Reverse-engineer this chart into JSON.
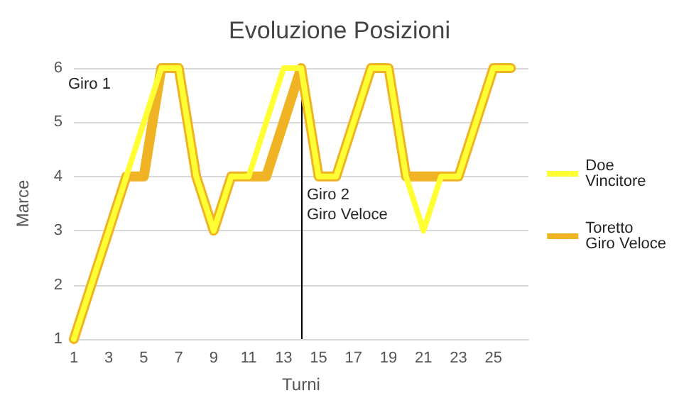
{
  "chart_data": {
    "type": "line",
    "title": "Evoluzione Posizioni",
    "xlabel": "Turni",
    "ylabel": "Marce",
    "x": [
      1,
      2,
      3,
      4,
      5,
      6,
      7,
      8,
      9,
      10,
      11,
      12,
      13,
      14,
      15,
      16,
      17,
      18,
      19,
      20,
      21,
      22,
      23,
      24,
      25,
      26
    ],
    "xlim": [
      1,
      27
    ],
    "xticks": [
      1,
      3,
      5,
      7,
      9,
      11,
      13,
      15,
      17,
      19,
      21,
      23,
      25
    ],
    "ylim": [
      1,
      6
    ],
    "yticks": [
      1,
      2,
      3,
      4,
      5,
      6
    ],
    "series": [
      {
        "name": "Doe\nVincitore",
        "color": "#ffff33",
        "values": [
          1,
          2,
          3,
          4,
          5,
          6,
          6,
          4,
          3,
          4,
          4,
          5,
          6,
          6,
          4,
          4,
          5,
          6,
          6,
          4,
          3,
          4,
          4,
          5,
          6,
          6
        ]
      },
      {
        "name": "Toretto\nGiro Veloce",
        "color": "#f0b323",
        "values": [
          1,
          2,
          3,
          4,
          4,
          6,
          6,
          4,
          3,
          4,
          4,
          4,
          5,
          6,
          4,
          4,
          5,
          6,
          6,
          4,
          4,
          4,
          4,
          5,
          6,
          6
        ]
      }
    ],
    "ref_lines": [
      {
        "axis": "x",
        "value": 14,
        "label": "Giro 2\nGiro Veloce",
        "color": "#000000"
      }
    ],
    "annotations": [
      "Giro 1"
    ],
    "grid": "y",
    "legend": "right",
    "marker": "none",
    "line_style": "solid"
  }
}
